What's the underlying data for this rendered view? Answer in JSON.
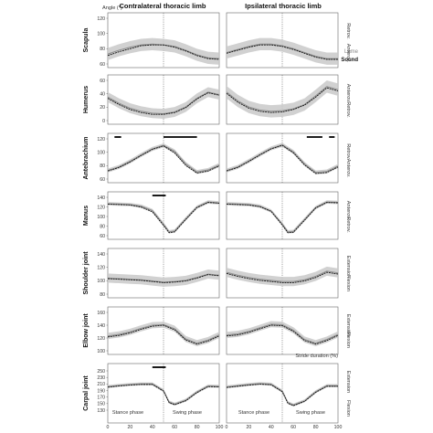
{
  "header": {
    "angle_label": "Angle (°)",
    "col_titles": [
      "Contralateral thoracic limb",
      "Ipsilateral thoracic limb"
    ]
  },
  "legend": {
    "lame": "Lame",
    "sound": "Sound"
  },
  "footer": {
    "xlabel": "Stride duration (%)",
    "stance": "Stance phase",
    "swing": "Swing phase"
  },
  "colors": {
    "lame": "#909090",
    "sound": "#111111",
    "band": "#c9c9c9",
    "sigbar": "#000000"
  },
  "chart_data": [
    {
      "type": "line",
      "row": 0,
      "label": "Scapula",
      "y_ticks": [
        "120",
        "100",
        "80",
        "60"
      ],
      "ylim": [
        60,
        120
      ],
      "dir_top": "Retrov.",
      "dir_bottom": "Anterov.",
      "x": [
        0,
        10,
        20,
        30,
        40,
        50,
        60,
        70,
        80,
        90,
        100
      ],
      "panels": [
        {
          "series": [
            {
              "name": "Lame",
              "values": [
                73,
                78,
                82,
                85,
                86,
                85,
                83,
                78,
                72,
                68,
                67
              ]
            },
            {
              "name": "Sound",
              "values": [
                71,
                76,
                80,
                84,
                85,
                85,
                82,
                77,
                71,
                67,
                66
              ]
            }
          ],
          "band": 8,
          "sig_bars": []
        },
        {
          "series": [
            {
              "name": "Lame",
              "values": [
                75,
                79,
                83,
                86,
                86,
                84,
                80,
                75,
                70,
                67,
                67
              ]
            },
            {
              "name": "Sound",
              "values": [
                74,
                78,
                82,
                85,
                85,
                83,
                79,
                74,
                69,
                66,
                66
              ]
            }
          ],
          "band": 8,
          "sig_bars": []
        }
      ]
    },
    {
      "type": "line",
      "row": 1,
      "label": "Humerus",
      "y_ticks": [
        "60",
        "40",
        "20",
        "0"
      ],
      "ylim": [
        0,
        65
      ],
      "dir_top": "Anterov.",
      "dir_bottom": "Retrov.",
      "x": [
        0,
        10,
        20,
        30,
        40,
        50,
        60,
        70,
        80,
        90,
        100
      ],
      "panels": [
        {
          "series": [
            {
              "name": "Lame",
              "values": [
                38,
                28,
                20,
                15,
                12,
                11,
                14,
                22,
                36,
                46,
                42
              ]
            },
            {
              "name": "Sound",
              "values": [
                36,
                26,
                18,
                13,
                10,
                10,
                13,
                21,
                35,
                45,
                41
              ]
            }
          ],
          "band": 8,
          "sig_bars": []
        },
        {
          "series": [
            {
              "name": "Lame",
              "values": [
                46,
                32,
                22,
                17,
                15,
                16,
                19,
                26,
                40,
                55,
                50
              ]
            },
            {
              "name": "Sound",
              "values": [
                44,
                30,
                20,
                15,
                13,
                14,
                18,
                25,
                38,
                53,
                48
              ]
            }
          ],
          "band": 10,
          "sig_bars": []
        }
      ]
    },
    {
      "type": "line",
      "row": 2,
      "label": "Antebrachium",
      "y_ticks": [
        "120",
        "100",
        "80",
        "60"
      ],
      "ylim": [
        50,
        130
      ],
      "dir_top": "Retrov.",
      "dir_bottom": "Anterov.",
      "x": [
        0,
        10,
        20,
        30,
        40,
        50,
        60,
        70,
        80,
        90,
        100
      ],
      "panels": [
        {
          "series": [
            {
              "name": "Lame",
              "values": [
                67,
                74,
                85,
                98,
                110,
                117,
                105,
                80,
                64,
                68,
                78
              ]
            },
            {
              "name": "Sound",
              "values": [
                66,
                73,
                84,
                97,
                109,
                116,
                102,
                77,
                62,
                66,
                76
              ]
            }
          ],
          "band": 4,
          "sig_bars": [
            [
              6,
              12
            ],
            [
              50,
              80
            ]
          ]
        },
        {
          "series": [
            {
              "name": "Lame",
              "values": [
                67,
                74,
                86,
                99,
                111,
                118,
                104,
                80,
                63,
                65,
                76
              ]
            },
            {
              "name": "Sound",
              "values": [
                66,
                73,
                85,
                98,
                110,
                117,
                102,
                78,
                61,
                63,
                74
              ]
            }
          ],
          "band": 4,
          "sig_bars": [
            [
              72,
              86
            ],
            [
              92,
              97
            ]
          ]
        }
      ]
    },
    {
      "type": "line",
      "row": 3,
      "label": "Manus",
      "y_ticks": [
        "140",
        "120",
        "100",
        "80",
        "60"
      ],
      "ylim": [
        55,
        145
      ],
      "dir_top": "Anterov.",
      "dir_bottom": "Retrov.",
      "x": [
        0,
        10,
        20,
        30,
        40,
        50,
        55,
        60,
        70,
        80,
        90,
        100
      ],
      "panels": [
        {
          "series": [
            {
              "name": "Lame",
              "values": [
                130,
                129,
                128,
                124,
                114,
                82,
                64,
                66,
                95,
                122,
                134,
                132
              ]
            },
            {
              "name": "Sound",
              "values": [
                129,
                128,
                127,
                122,
                111,
                79,
                62,
                64,
                93,
                121,
                133,
                131
              ]
            }
          ],
          "band": 4,
          "sig_bars": [
            [
              40,
              52
            ]
          ]
        },
        {
          "series": [
            {
              "name": "Lame",
              "values": [
                130,
                129,
                128,
                124,
                113,
                82,
                64,
                65,
                93,
                121,
                134,
                133
              ]
            },
            {
              "name": "Sound",
              "values": [
                129,
                128,
                127,
                123,
                112,
                80,
                62,
                63,
                91,
                120,
                133,
                132
              ]
            }
          ],
          "band": 4,
          "sig_bars": []
        }
      ]
    },
    {
      "type": "line",
      "row": 4,
      "label": "Shoulder joint",
      "y_ticks": [
        "140",
        "120",
        "100",
        "80"
      ],
      "ylim": [
        75,
        145
      ],
      "dir_top": "Extension",
      "dir_bottom": "Flexion",
      "x": [
        0,
        10,
        20,
        30,
        40,
        50,
        60,
        70,
        80,
        90,
        100
      ],
      "panels": [
        {
          "series": [
            {
              "name": "Lame",
              "values": [
                103,
                102,
                101,
                100,
                98,
                96,
                97,
                99,
                104,
                110,
                108
              ]
            },
            {
              "name": "Sound",
              "values": [
                102,
                101,
                100,
                99,
                97,
                95,
                96,
                98,
                103,
                109,
                107
              ]
            }
          ],
          "band": 8,
          "sig_bars": []
        },
        {
          "series": [
            {
              "name": "Lame",
              "values": [
                113,
                108,
                104,
                101,
                99,
                97,
                97,
                100,
                106,
                115,
                112
              ]
            },
            {
              "name": "Sound",
              "values": [
                111,
                106,
                102,
                99,
                97,
                95,
                95,
                98,
                104,
                113,
                110
              ]
            }
          ],
          "band": 8,
          "sig_bars": []
        }
      ]
    },
    {
      "type": "line",
      "row": 5,
      "label": "Elbow joint",
      "y_ticks": [
        "160",
        "140",
        "120",
        "100"
      ],
      "ylim": [
        95,
        170
      ],
      "dir_top": "Extension",
      "dir_bottom": "Flexion",
      "x": [
        0,
        10,
        20,
        30,
        40,
        50,
        60,
        70,
        80,
        90,
        100
      ],
      "panels": [
        {
          "series": [
            {
              "name": "Lame",
              "values": [
                124,
                127,
                132,
                139,
                145,
                146,
                138,
                118,
                110,
                116,
                126
              ]
            },
            {
              "name": "Sound",
              "values": [
                122,
                125,
                130,
                137,
                143,
                145,
                136,
                116,
                108,
                114,
                124
              ]
            }
          ],
          "band": 6,
          "sig_bars": []
        },
        {
          "series": [
            {
              "name": "Lame",
              "values": [
                126,
                128,
                133,
                140,
                147,
                146,
                135,
                117,
                110,
                117,
                127
              ]
            },
            {
              "name": "Sound",
              "values": [
                124,
                126,
                131,
                138,
                145,
                144,
                133,
                115,
                108,
                115,
                125
              ]
            }
          ],
          "band": 6,
          "sig_bars": []
        }
      ]
    },
    {
      "type": "line",
      "row": 6,
      "label": "Carpal joint",
      "y_ticks": [
        "250",
        "230",
        "210",
        "190",
        "170",
        "150",
        "130"
      ],
      "ylim": [
        125,
        255
      ],
      "dir_top": "Extension",
      "dir_bottom": "Flexion",
      "x": [
        0,
        10,
        20,
        30,
        40,
        50,
        55,
        60,
        70,
        80,
        90,
        100
      ],
      "panels": [
        {
          "series": [
            {
              "name": "Lame",
              "values": [
                203,
                207,
                210,
                212,
                212,
                190,
                152,
                145,
                158,
                185,
                205,
                204
              ]
            },
            {
              "name": "Sound",
              "values": [
                201,
                205,
                208,
                210,
                210,
                188,
                150,
                143,
                156,
                183,
                203,
                202
              ]
            }
          ],
          "band": 5,
          "sig_bars": [
            [
              40,
              52
            ]
          ]
        },
        {
          "series": [
            {
              "name": "Lame",
              "values": [
                202,
                206,
                210,
                213,
                211,
                188,
                150,
                142,
                156,
                186,
                206,
                206
              ]
            },
            {
              "name": "Sound",
              "values": [
                200,
                204,
                208,
                211,
                209,
                186,
                148,
                140,
                154,
                184,
                204,
                204
              ]
            }
          ],
          "band": 5,
          "sig_bars": []
        }
      ]
    }
  ],
  "x_ticks": [
    "0",
    "20",
    "40",
    "60",
    "80",
    "100"
  ],
  "stance_swing_boundary": 50
}
